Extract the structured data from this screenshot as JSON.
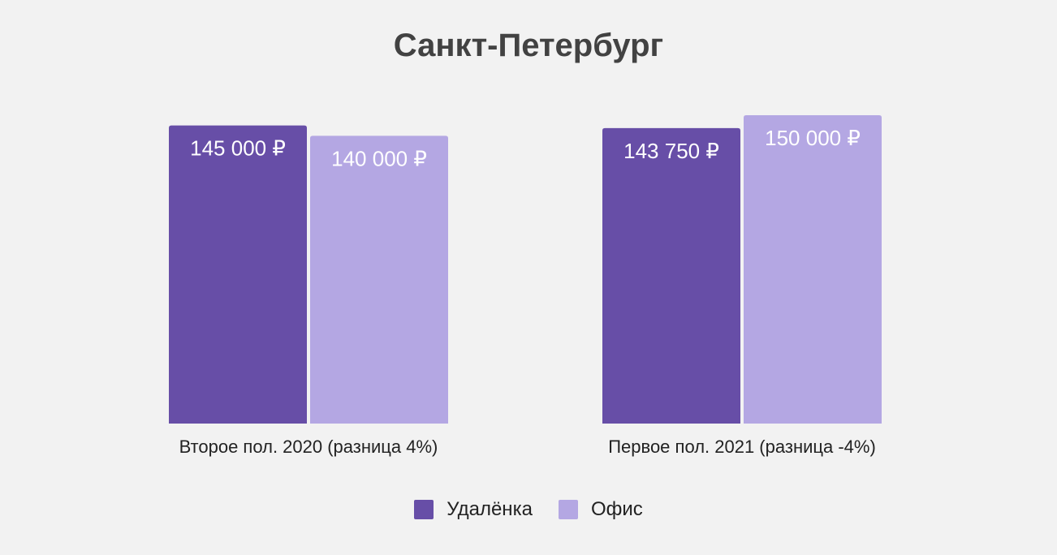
{
  "chart_data": {
    "type": "bar",
    "title": "Санкт-Петербург",
    "categories": [
      "Второе пол. 2020 (разница 4%)",
      "Первое пол. 2021 (разница -4%)"
    ],
    "series": [
      {
        "name": "Удалёнка",
        "values": [
          145000,
          143750
        ],
        "labels": [
          "145 000 ₽",
          "143 750 ₽"
        ],
        "color": "#674ea7"
      },
      {
        "name": "Офис",
        "values": [
          140000,
          150000
        ],
        "labels": [
          "140 000 ₽",
          "150 000 ₽"
        ],
        "color": "#b4a7e3"
      }
    ],
    "ylim": [
      0,
      150000
    ],
    "grid": false,
    "legend_position": "bottom"
  }
}
